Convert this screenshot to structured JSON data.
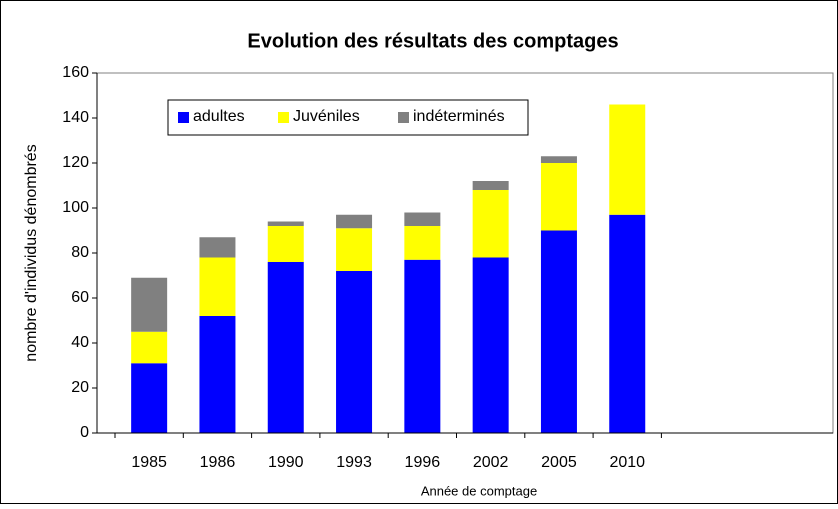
{
  "chart_data": {
    "type": "bar",
    "stacked": true,
    "title": "Evolution des résultats des comptages",
    "xlabel": "Année de comptage",
    "ylabel": "nombre d'individus dénombrés",
    "categories": [
      "1985",
      "1986",
      "1990",
      "1993",
      "1996",
      "2002",
      "2005",
      "2010"
    ],
    "series": [
      {
        "name": "adultes",
        "color": "#0000ff",
        "values": [
          31,
          52,
          76,
          72,
          77,
          78,
          90,
          97
        ]
      },
      {
        "name": "Juvéniles",
        "color": "#ffff00",
        "values": [
          14,
          26,
          16,
          19,
          15,
          30,
          30,
          49
        ]
      },
      {
        "name": "indéterminés",
        "color": "#808080",
        "values": [
          24,
          9,
          2,
          6,
          6,
          4,
          3,
          0
        ]
      }
    ],
    "ylim": [
      0,
      160
    ],
    "yticks": [
      0,
      20,
      40,
      60,
      80,
      100,
      120,
      140,
      160
    ],
    "grid": false,
    "legend": "top-left"
  }
}
